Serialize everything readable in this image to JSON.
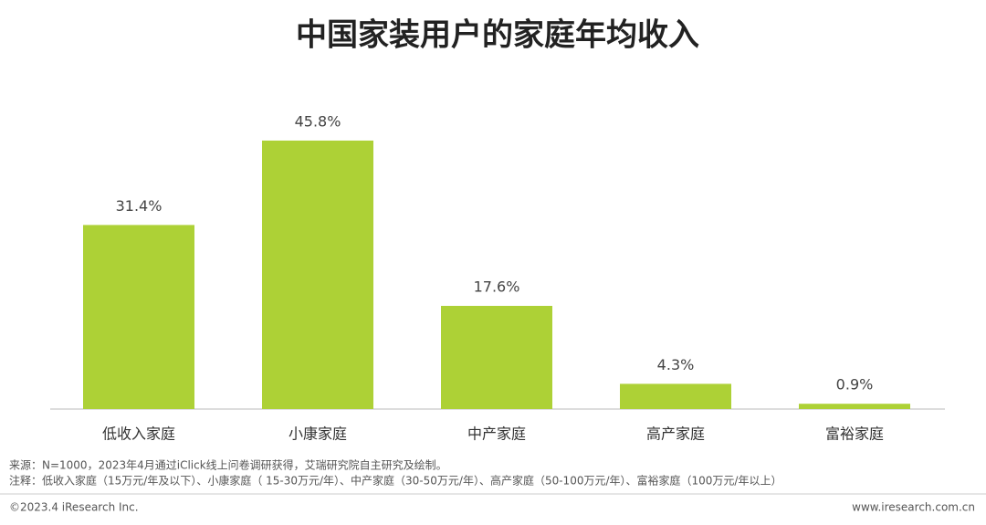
{
  "chart_data": {
    "type": "bar",
    "title": "中国家装用户的家庭年均收入",
    "categories": [
      "低收入家庭",
      "小康家庭",
      "中产家庭",
      "高产家庭",
      "富裕家庭"
    ],
    "values": [
      31.4,
      45.8,
      17.6,
      4.3,
      0.9
    ],
    "value_labels": [
      "31.4%",
      "45.8%",
      "17.6%",
      "4.3%",
      "0.9%"
    ],
    "color": "#add136",
    "source": "来源：N=1000，2023年4月通过iClick线上问卷调研获得，艾瑞研究院自主研究及绘制。",
    "note": "注释：低收入家庭（15万元/年及以下）、小康家庭（ 15-30万元/年）、中产家庭（30-50万元/年）、高产家庭（50-100万元/年）、富裕家庭（100万元/年以上）",
    "copyright": "©2023.4 iResearch Inc.",
    "website": "www.iresearch.com.cn"
  }
}
